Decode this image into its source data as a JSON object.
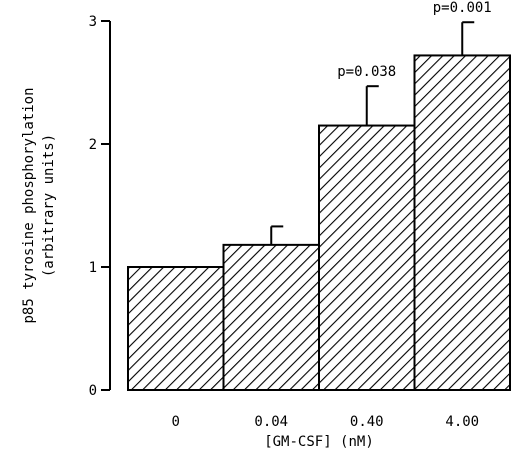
{
  "chart_data": {
    "type": "bar",
    "title": "",
    "xlabel": "[GM-CSF] (nM)",
    "ylabel_line1": "p85 tyrosine phosphorylation",
    "ylabel_line2": "(arbitrary units)",
    "categories": [
      "0",
      "0.04",
      "0.40",
      "4.00"
    ],
    "values": [
      1.0,
      1.18,
      2.15,
      2.72
    ],
    "error_upper": [
      null,
      1.33,
      2.47,
      2.99
    ],
    "annotations": [
      "",
      "",
      "p=0.038",
      "p=0.001"
    ],
    "ylim": [
      0,
      3
    ],
    "yticks": [
      0,
      1,
      2,
      3
    ],
    "bar_fill": "diagonal-hatch",
    "bar_color": "#000000",
    "grid": false,
    "legend": "none"
  }
}
